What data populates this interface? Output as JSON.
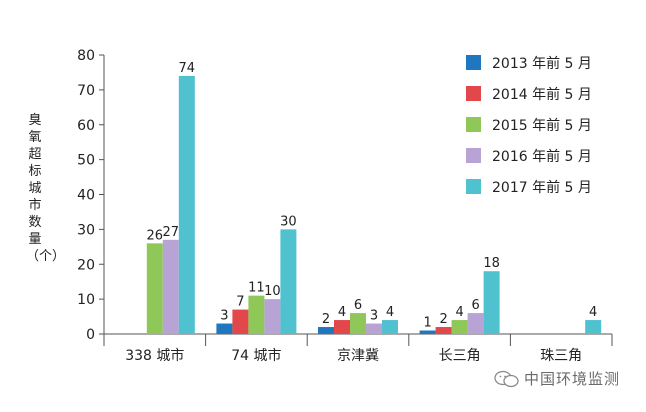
{
  "chart_data": {
    "type": "bar",
    "ylabel": "臭氧超标城市数量（个）",
    "ylim": [
      0,
      80
    ],
    "yticks": [
      0,
      10,
      20,
      30,
      40,
      50,
      60,
      70,
      80
    ],
    "categories": [
      "338 城市",
      "74 城市",
      "京津冀",
      "长三角",
      "珠三角"
    ],
    "legend_position": "top-right",
    "series": [
      {
        "name": "2013 年前 5 月",
        "color": "#1f78bf",
        "values": [
          null,
          3,
          2,
          1,
          null
        ]
      },
      {
        "name": "2014 年前 5 月",
        "color": "#e2474b",
        "values": [
          null,
          7,
          4,
          2,
          null
        ]
      },
      {
        "name": "2015 年前 5 月",
        "color": "#8fc859",
        "values": [
          26,
          11,
          6,
          4,
          null
        ]
      },
      {
        "name": "2016 年前 5 月",
        "color": "#b7a4d4",
        "values": [
          27,
          10,
          3,
          6,
          null
        ]
      },
      {
        "name": "2017 年前 5 月",
        "color": "#4fc1cf",
        "values": [
          74,
          30,
          4,
          18,
          4
        ]
      }
    ]
  },
  "watermark": {
    "text": "中国环境监测",
    "icon": "wechat-icon"
  }
}
